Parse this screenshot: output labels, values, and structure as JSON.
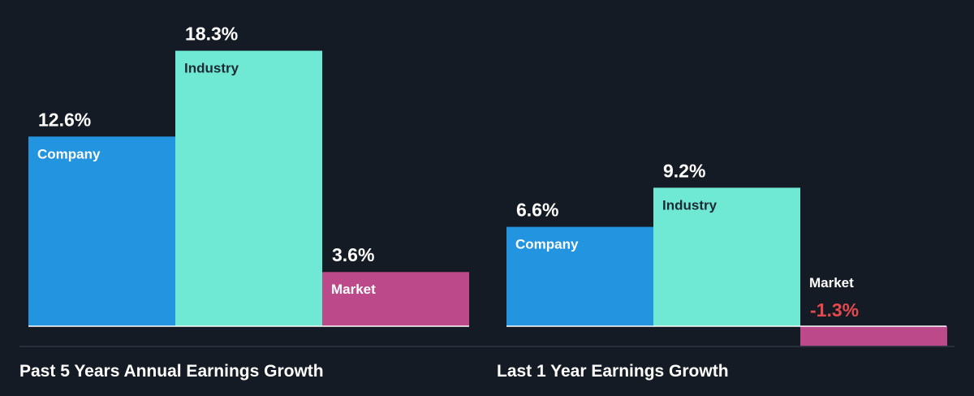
{
  "colors": {
    "background": "#151b24",
    "company": "#2394e0",
    "industry": "#6fe8d4",
    "market": "#bc4a8a",
    "baseline": "#ffffff",
    "divider": "#3a4350",
    "value_text": "#ffffff",
    "negative_text": "#e5484d"
  },
  "chart_data": [
    {
      "type": "bar",
      "title": "Past 5 Years Annual Earnings Growth",
      "categories": [
        "Company",
        "Industry",
        "Market"
      ],
      "values": [
        12.6,
        18.3,
        3.6
      ],
      "value_labels": [
        "12.6%",
        "18.3%",
        "3.6%"
      ],
      "unit": "%"
    },
    {
      "type": "bar",
      "title": "Last 1 Year Earnings Growth",
      "categories": [
        "Company",
        "Industry",
        "Market"
      ],
      "values": [
        6.6,
        9.2,
        -1.3
      ],
      "value_labels": [
        "6.6%",
        "9.2%",
        "-1.3%"
      ],
      "unit": "%"
    }
  ]
}
